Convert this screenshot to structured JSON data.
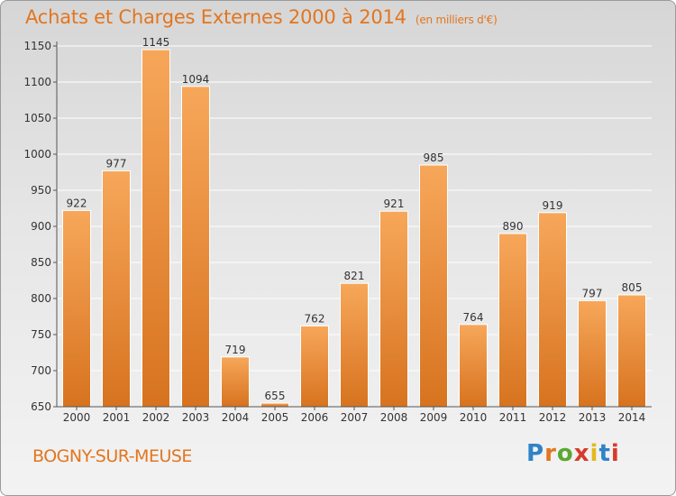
{
  "header": {
    "title": "Achats et Charges Externes 2000 à 2014",
    "subtitle": "(en milliers d'€)"
  },
  "footer": {
    "city": "BOGNY-SUR-MEUSE",
    "logo_letters": [
      "P",
      "r",
      "o",
      "x",
      "i",
      "t",
      "i"
    ]
  },
  "colors": {
    "accent": "#e2761f",
    "bar_top": "#f7a75a",
    "bar_bottom": "#d7731f"
  },
  "chart_data": {
    "type": "bar",
    "title": "Achats et Charges Externes 2000 à 2014",
    "subtitle": "(en milliers d'€)",
    "categories": [
      "2000",
      "2001",
      "2002",
      "2003",
      "2004",
      "2005",
      "2006",
      "2007",
      "2008",
      "2009",
      "2010",
      "2011",
      "2012",
      "2013",
      "2014"
    ],
    "values": [
      922,
      977,
      1145,
      1094,
      719,
      655,
      762,
      821,
      921,
      985,
      764,
      890,
      919,
      797,
      805
    ],
    "ylim": [
      650,
      1150
    ],
    "yticks": [
      650,
      700,
      750,
      800,
      850,
      900,
      950,
      1000,
      1050,
      1100,
      1150
    ],
    "grid": true,
    "legend": "none"
  }
}
